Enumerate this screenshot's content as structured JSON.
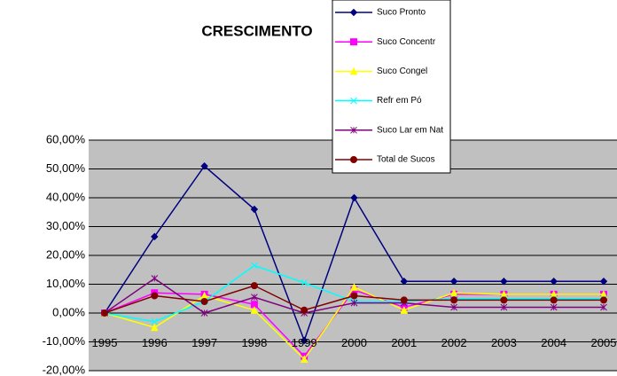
{
  "chart_data": {
    "type": "line",
    "title": "CRESCIMENTO",
    "categories": [
      "1995",
      "1996",
      "1997",
      "1998",
      "1999",
      "2000",
      "2001",
      "2002",
      "2003",
      "2004",
      "2005"
    ],
    "series": [
      {
        "name": "Suco Pronto",
        "color": "#000080",
        "values": [
          0,
          26.5,
          51,
          36,
          -9.5,
          40,
          11,
          11,
          11,
          11,
          11
        ]
      },
      {
        "name": "Suco Concentr",
        "color": "#ff00ff",
        "values": [
          0,
          7,
          6.5,
          3,
          -15,
          8,
          2,
          6.5,
          6.5,
          6.5,
          6.5
        ]
      },
      {
        "name": "Suco Congel",
        "color": "#ffff00",
        "values": [
          0,
          -5,
          6,
          1,
          -16,
          9,
          1,
          7,
          6.5,
          6.5,
          6.5
        ]
      },
      {
        "name": "Refr em Pó",
        "color": "#00ffff",
        "values": [
          0,
          -3,
          4,
          16.5,
          10.5,
          4,
          4,
          5,
          5,
          5,
          5
        ]
      },
      {
        "name": "Suco Lar em Nat",
        "color": "#800080",
        "values": [
          0,
          12,
          0,
          5.5,
          0,
          3.5,
          3.5,
          2,
          2,
          2,
          2
        ]
      },
      {
        "name": "Total de Sucos",
        "color": "#800000",
        "values": [
          0,
          6,
          4,
          9.5,
          1,
          6,
          4.5,
          4.5,
          4.5,
          4.5,
          4.5
        ]
      }
    ],
    "ylim": [
      -20,
      60
    ],
    "yticks": [
      {
        "value": -20,
        "label": "-20,00%"
      },
      {
        "value": -10,
        "label": "-10,00%"
      },
      {
        "value": 0,
        "label": "0,00%"
      },
      {
        "value": 10,
        "label": "10,00%"
      },
      {
        "value": 20,
        "label": "20,00%"
      },
      {
        "value": 30,
        "label": "30,00%"
      },
      {
        "value": 40,
        "label": "40,00%"
      },
      {
        "value": 50,
        "label": "50,00%"
      },
      {
        "value": 60,
        "label": "60,00%"
      }
    ],
    "grid": true
  }
}
